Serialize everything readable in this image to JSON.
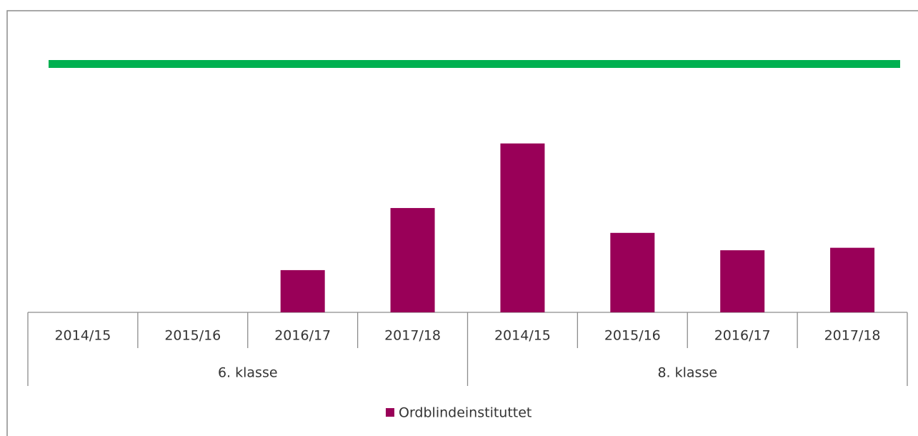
{
  "chart_data": {
    "type": "bar",
    "groups": [
      {
        "name": "6. klasse",
        "categories": [
          "2014/15",
          "2015/16",
          "2016/17",
          "2017/18"
        ]
      },
      {
        "name": "8. klasse",
        "categories": [
          "2014/15",
          "2015/16",
          "2016/17",
          "2017/18"
        ]
      }
    ],
    "series": [
      {
        "name": "Ordblindeinstituttet",
        "color": "#990058",
        "values": [
          null,
          null,
          17,
          42,
          68,
          32,
          25,
          26
        ]
      }
    ],
    "reference_line": {
      "value": 100,
      "color": "#00b050"
    },
    "ylim": [
      0,
      120
    ],
    "legend": "bottom"
  }
}
